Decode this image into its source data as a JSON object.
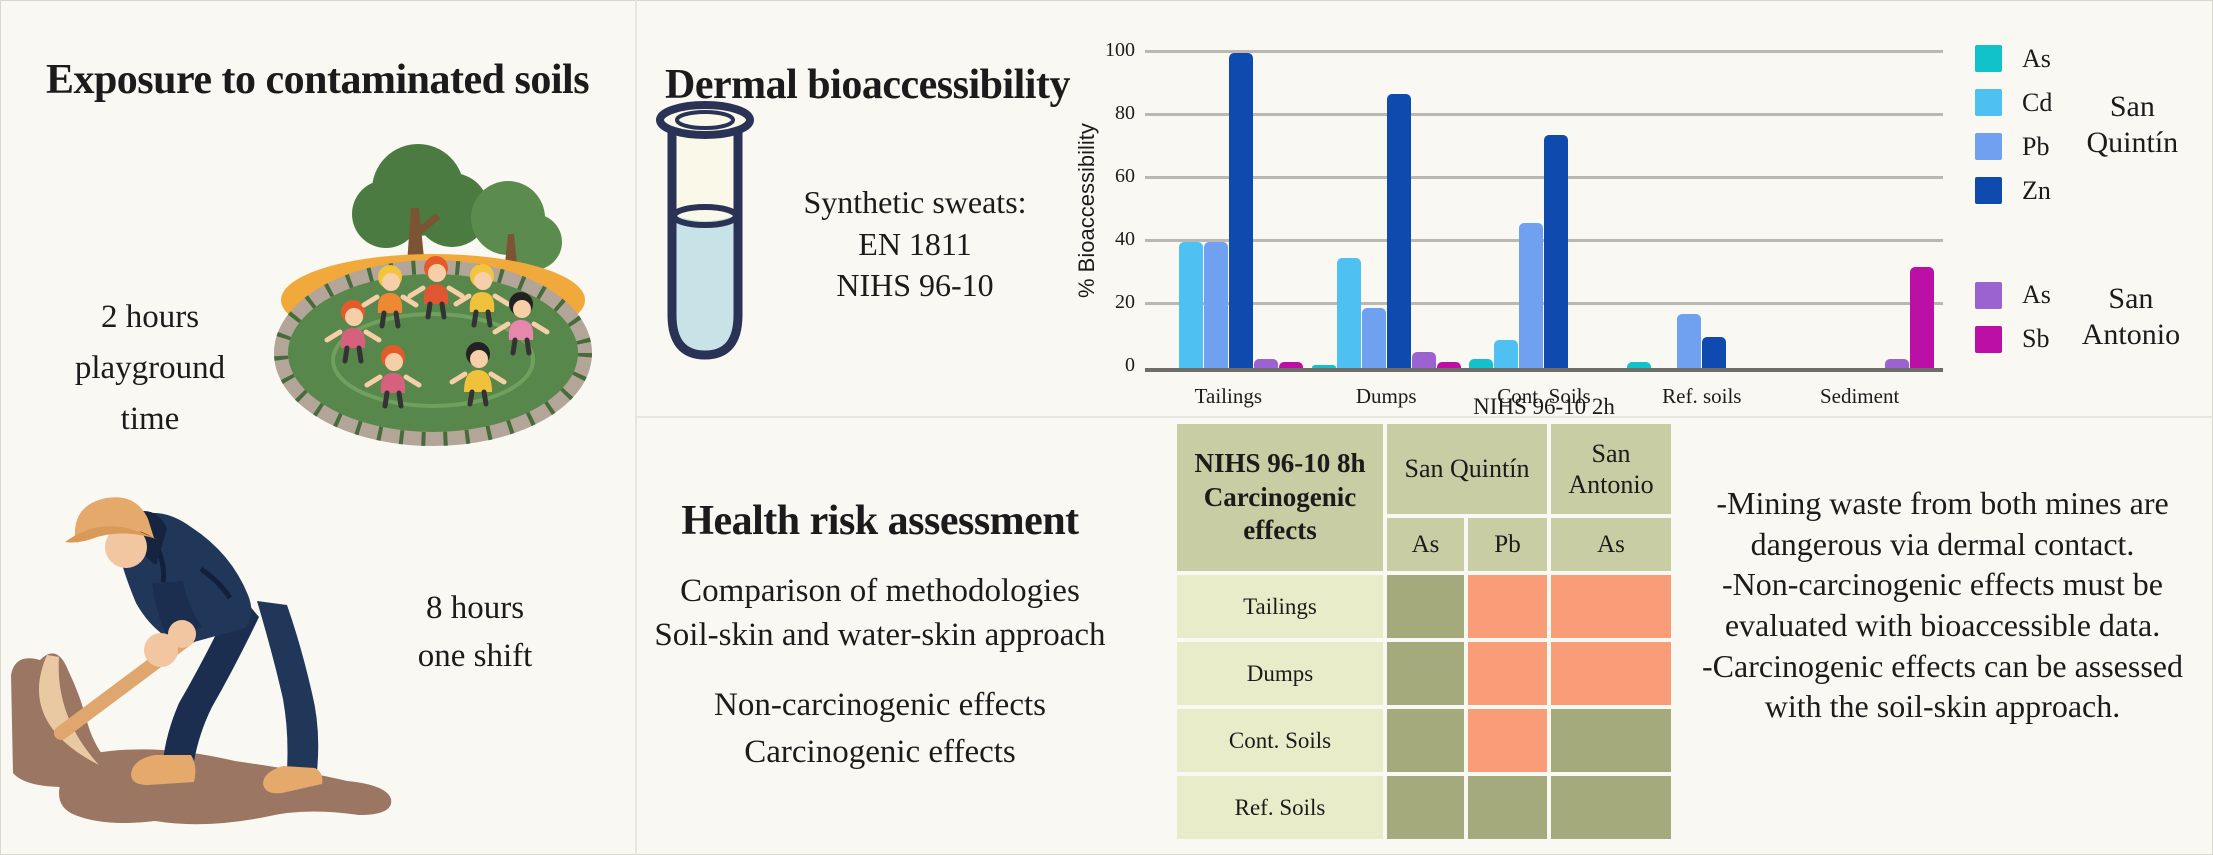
{
  "exposure": {
    "title": "Exposure to contaminated soils",
    "playground_label": "2 hours\nplayground\ntime",
    "shift_label": "8 hours\none shift"
  },
  "dermal": {
    "title": "Dermal bioaccessibility",
    "subtitle": "Synthetic sweats:\nEN 1811\nNIHS 96-10"
  },
  "health": {
    "title": "Health risk assessment",
    "methods": "Comparison of methodologies\nSoil-skin and water-skin approach",
    "effects": "Non-carcinogenic effects\nCarcinogenic effects"
  },
  "conclusions": {
    "text": "-Mining waste from both mines are dangerous via dermal contact.\n-Non-carcinogenic effects must be evaluated with bioaccessible data.\n-Carcinogenic effects can be assessed with the soil-skin approach."
  },
  "chart_data": {
    "type": "bar",
    "title": "",
    "xlabel": "NIHS 96-10 2h",
    "ylabel": "% Bioaccessibility",
    "ylim": [
      0,
      100
    ],
    "yticks": [
      0,
      20,
      40,
      60,
      80,
      100
    ],
    "grid": true,
    "legend_position": "right",
    "categories": [
      "Tailings",
      "Dumps",
      "Cont. Soils",
      "Ref. soils",
      "Sediment"
    ],
    "series": [
      {
        "name": "As",
        "site": "San Quintín",
        "color": "#12C2CB",
        "values": [
          0,
          1,
          3,
          2,
          0
        ]
      },
      {
        "name": "Cd",
        "site": "San Quintín",
        "color": "#4FC0F2",
        "values": [
          40,
          35,
          9,
          0,
          0
        ]
      },
      {
        "name": "Pb",
        "site": "San Quintín",
        "color": "#6FA1F0",
        "values": [
          40,
          19,
          46,
          17,
          0
        ]
      },
      {
        "name": "Zn",
        "site": "San Quintín",
        "color": "#0F4AAE",
        "values": [
          100,
          87,
          74,
          10,
          0
        ]
      },
      {
        "name": "As",
        "site": "San Antonio",
        "color": "#9A63CF",
        "values": [
          3,
          5,
          0,
          0,
          3
        ]
      },
      {
        "name": "Sb",
        "site": "San Antonio",
        "color": "#BC0FA6",
        "values": [
          2,
          2,
          0,
          0,
          32
        ]
      }
    ],
    "legend_groups": [
      {
        "label": "San Quintín",
        "series": [
          0,
          1,
          2,
          3
        ]
      },
      {
        "label": "San Antonio",
        "series": [
          4,
          5
        ]
      }
    ]
  },
  "table": {
    "title": "NIHS 96-10 8h\nCarcinogenic effects",
    "col_groups": [
      {
        "label": "San Quintín",
        "span": 2
      },
      {
        "label": "San Antonio",
        "span": 1
      }
    ],
    "sub_headers": [
      "As",
      "Pb",
      "As"
    ],
    "rows": [
      {
        "label": "Tailings",
        "cells": [
          "safe",
          "risk",
          "risk"
        ]
      },
      {
        "label": "Dumps",
        "cells": [
          "safe",
          "risk",
          "risk"
        ]
      },
      {
        "label": "Cont. Soils",
        "cells": [
          "safe",
          "risk",
          "safe"
        ]
      },
      {
        "label": "Ref. Soils",
        "cells": [
          "safe",
          "safe",
          "safe"
        ]
      }
    ],
    "colors": {
      "safe": "#A5AA7D",
      "risk": "#F89D78",
      "header": "#C9CDA3",
      "row_label": "#E9ECC9"
    }
  }
}
